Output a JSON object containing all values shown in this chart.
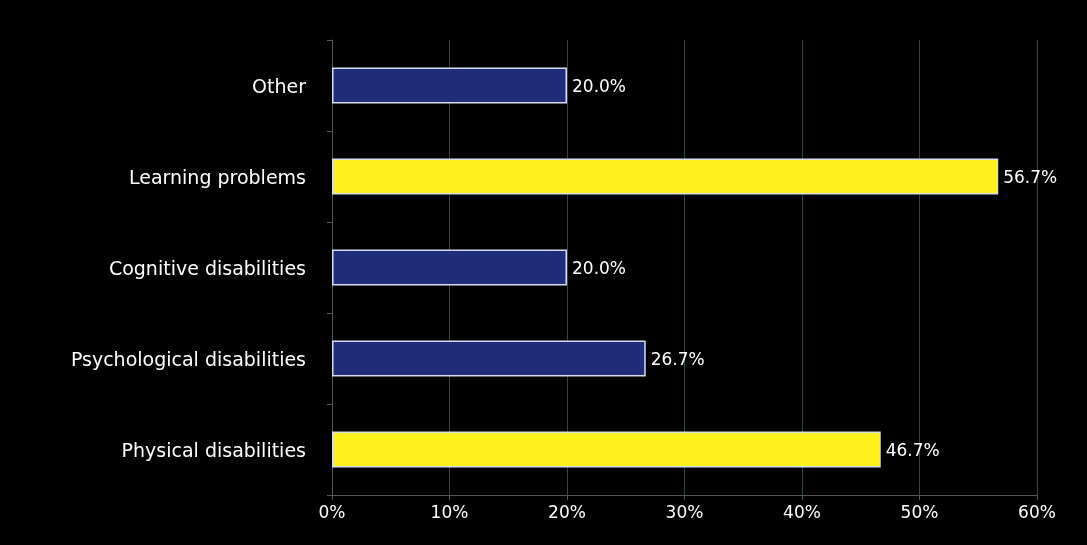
{
  "chart_data": {
    "type": "bar",
    "orientation": "horizontal",
    "categories": [
      "Other",
      "Learning problems",
      "Cognitive disabilities",
      "Psychological disabilities",
      "Physical disabilities"
    ],
    "values": [
      20.0,
      56.7,
      20.0,
      26.7,
      46.7
    ],
    "colors": [
      "#1f2d7a",
      "#fff01e",
      "#1f2d7a",
      "#1f2d7a",
      "#fff01e"
    ],
    "value_labels": [
      "20.0%",
      "56.7%",
      "20.0%",
      "26.7%",
      "46.7%"
    ],
    "xlim": [
      0,
      60
    ],
    "xticks": [
      {
        "value": 0,
        "label": "0%"
      },
      {
        "value": 10,
        "label": "10%"
      },
      {
        "value": 20,
        "label": "20%"
      },
      {
        "value": 30,
        "label": "30%"
      },
      {
        "value": 40,
        "label": "40%"
      },
      {
        "value": 50,
        "label": "50%"
      },
      {
        "value": 60,
        "label": "60%"
      }
    ],
    "grid": "x"
  }
}
